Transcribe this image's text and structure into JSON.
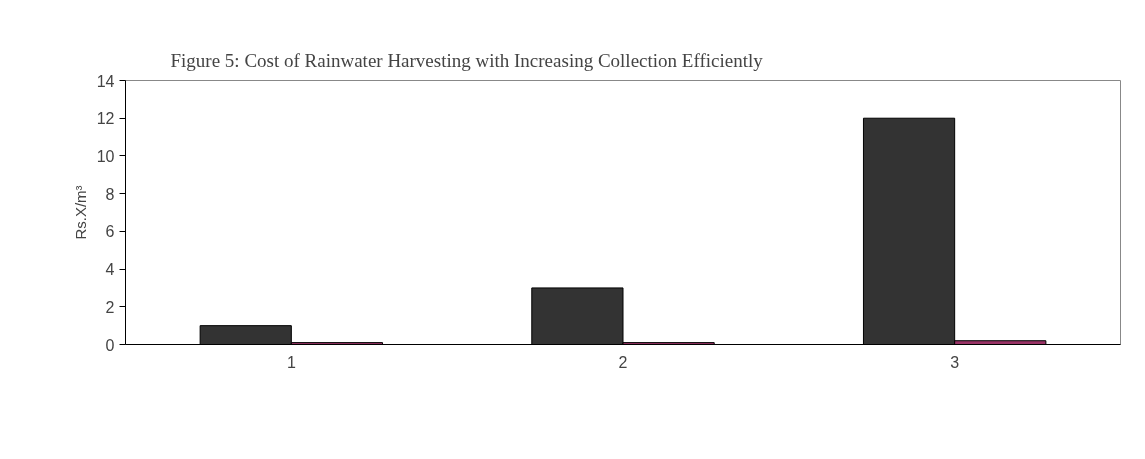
{
  "chart_data": {
    "type": "bar",
    "title": "Figure 5: Cost of Rainwater Harvesting with Increasing Collection Efficiently",
    "ylabel": "Rs.X/m³",
    "categories": [
      "1",
      "2",
      "3"
    ],
    "series": [
      {
        "color": "#333333",
        "values": [
          1,
          3,
          12
        ]
      },
      {
        "color": "#993366",
        "values": [
          0.1,
          0.1,
          0.2
        ]
      }
    ],
    "ylim": [
      0,
      14
    ],
    "yticks": [
      0,
      2,
      4,
      6,
      8,
      10,
      12,
      14
    ],
    "grid": false
  }
}
